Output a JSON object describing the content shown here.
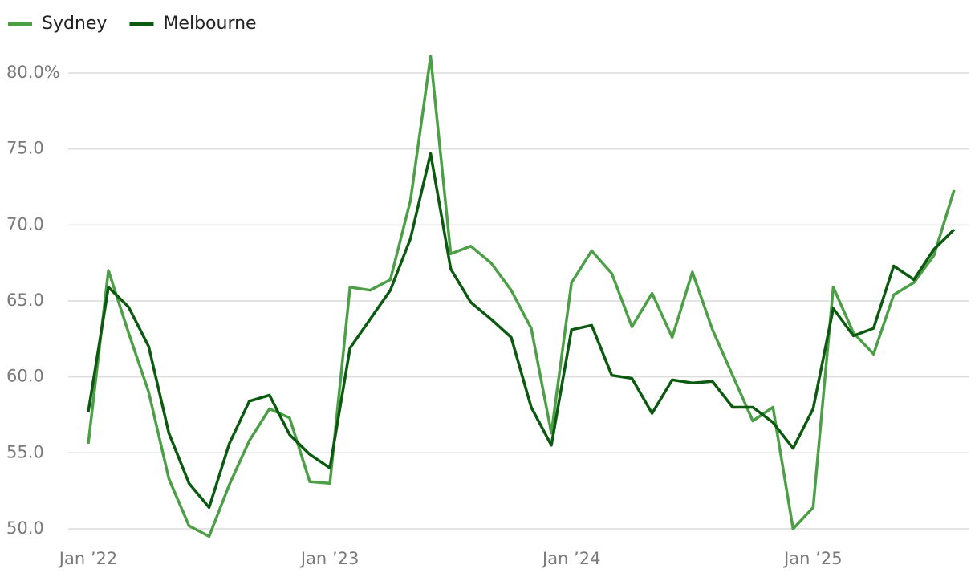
{
  "chart_data": {
    "type": "line",
    "categories": [
      "Jan ’22",
      null,
      null,
      null,
      null,
      null,
      null,
      null,
      null,
      null,
      null,
      null,
      "Jan ’23",
      null,
      null,
      null,
      null,
      null,
      null,
      null,
      null,
      null,
      null,
      null,
      "Jan ’24",
      null,
      null,
      null,
      null,
      null,
      null,
      null,
      null,
      null,
      null,
      null,
      "Jan ’25",
      null,
      null,
      null,
      null,
      null,
      null,
      null
    ],
    "series": [
      {
        "name": "Sydney",
        "color": "#4c9f47",
        "values": [
          55.6,
          67.0,
          62.9,
          59.0,
          53.3,
          50.2,
          49.5,
          52.9,
          55.8,
          57.9,
          57.3,
          53.1,
          53.0,
          65.9,
          65.7,
          66.4,
          71.6,
          81.1,
          68.1,
          68.6,
          67.5,
          65.7,
          63.2,
          56.3,
          66.2,
          68.3,
          66.8,
          63.3,
          65.5,
          62.6,
          66.9,
          63.1,
          60.1,
          57.1,
          58.0,
          50.0,
          51.4,
          65.9,
          62.9,
          61.5,
          65.4,
          66.2,
          68.0,
          72.3
        ]
      },
      {
        "name": "Melbourne",
        "color": "#0b5a10",
        "values": [
          57.7,
          65.9,
          64.6,
          62.0,
          56.3,
          53.0,
          51.4,
          55.6,
          58.4,
          58.8,
          56.2,
          54.9,
          54.0,
          61.9,
          63.8,
          65.7,
          69.1,
          74.7,
          67.1,
          64.9,
          63.8,
          62.6,
          58.0,
          55.5,
          63.1,
          63.4,
          60.1,
          59.9,
          57.6,
          59.8,
          59.6,
          59.7,
          58.0,
          58.0,
          57.0,
          55.3,
          57.9,
          64.5,
          62.7,
          63.2,
          67.3,
          66.4,
          68.4,
          69.7
        ]
      }
    ],
    "ylim": [
      49.2,
      81.5
    ],
    "yticks": [
      {
        "value": 50,
        "label": "50.0"
      },
      {
        "value": 55,
        "label": "55.0"
      },
      {
        "value": 60,
        "label": "60.0"
      },
      {
        "value": 65,
        "label": "65.0"
      },
      {
        "value": 70,
        "label": "70.0"
      },
      {
        "value": 75,
        "label": "75.0"
      },
      {
        "value": 80,
        "label": "80.0%"
      }
    ],
    "grid": true
  }
}
